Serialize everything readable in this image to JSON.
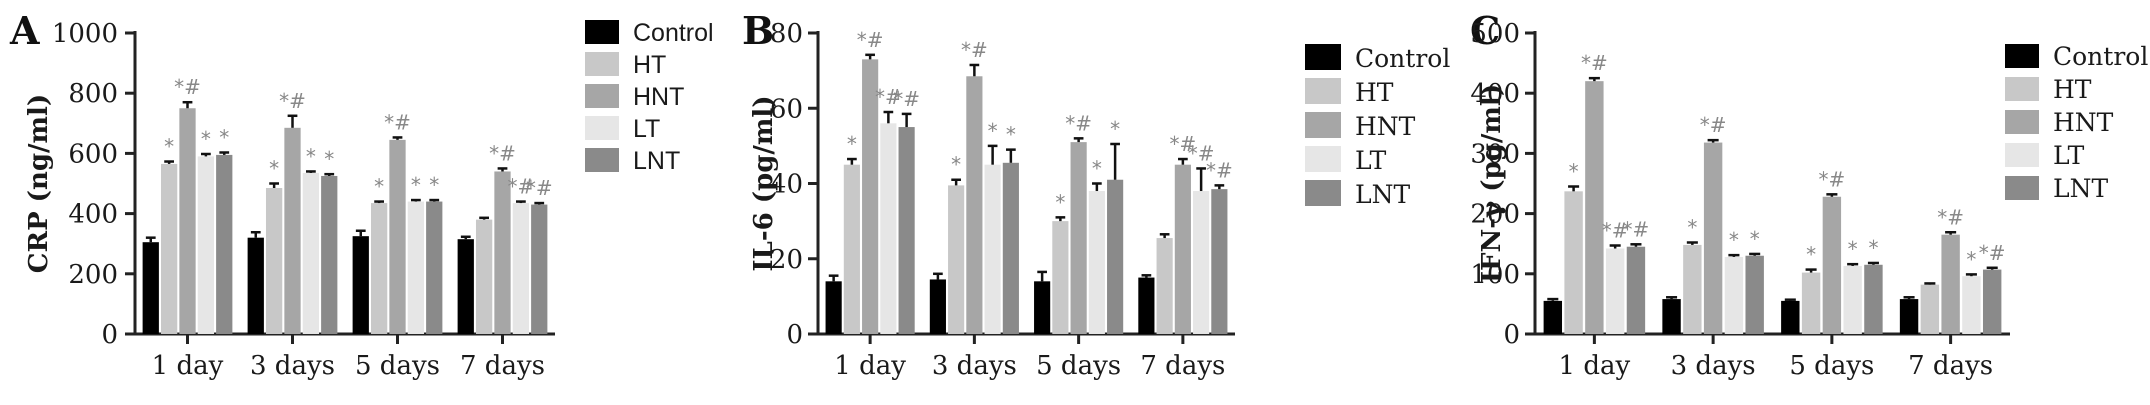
{
  "chart_data": [
    {
      "type": "bar",
      "panel": "A",
      "ylabel": "CRP (ng/ml)",
      "ylim": [
        0,
        1000
      ],
      "yticks": [
        0,
        200,
        400,
        600,
        800,
        1000
      ],
      "categories": [
        "1 day",
        "3 days",
        "5 days",
        "7 days"
      ],
      "legend_position": "top-right",
      "series": [
        {
          "name": "Control",
          "color": "#000000",
          "values": [
            305,
            320,
            325,
            315
          ],
          "errors": [
            15,
            18,
            18,
            8
          ],
          "marks": [
            "",
            "",
            "",
            ""
          ]
        },
        {
          "name": "HT",
          "color": "#c8c8c8",
          "values": [
            565,
            485,
            435,
            380
          ],
          "errors": [
            8,
            15,
            5,
            6
          ],
          "marks": [
            "*",
            "*",
            "*",
            ""
          ]
        },
        {
          "name": "HNT",
          "color": "#a6a6a6",
          "values": [
            750,
            685,
            645,
            540
          ],
          "errors": [
            20,
            40,
            8,
            10
          ],
          "marks": [
            "*#",
            "*#",
            "*#",
            "*#"
          ]
        },
        {
          "name": "LT",
          "color": "#e6e6e6",
          "values": [
            590,
            535,
            440,
            435
          ],
          "errors": [
            8,
            5,
            5,
            5
          ],
          "marks": [
            "*",
            "*",
            "*",
            "*#"
          ]
        },
        {
          "name": "LNT",
          "color": "#8a8a8a",
          "values": [
            595,
            525,
            440,
            430
          ],
          "errors": [
            8,
            6,
            5,
            5
          ],
          "marks": [
            "*",
            "*",
            "*",
            "*#"
          ]
        }
      ]
    },
    {
      "type": "bar",
      "panel": "B",
      "ylabel": "IL-6 (pg/ml)",
      "ylim": [
        0,
        80
      ],
      "yticks": [
        0,
        20,
        40,
        60,
        80
      ],
      "categories": [
        "1 day",
        "3 days",
        "5 days",
        "7 days"
      ],
      "legend_position": "top-right",
      "series": [
        {
          "name": "Control",
          "color": "#000000",
          "values": [
            14,
            14.5,
            14,
            15
          ],
          "errors": [
            1.5,
            1.5,
            2.5,
            0.6
          ],
          "marks": [
            "",
            "",
            "",
            ""
          ]
        },
        {
          "name": "HT",
          "color": "#c8c8c8",
          "values": [
            45,
            39.5,
            30,
            25.5
          ],
          "errors": [
            1.5,
            1.5,
            1.0,
            1.0
          ],
          "marks": [
            "*",
            "*",
            "*",
            ""
          ]
        },
        {
          "name": "HNT",
          "color": "#a6a6a6",
          "values": [
            73,
            68.5,
            51,
            45
          ],
          "errors": [
            1.2,
            3.0,
            1.0,
            1.5
          ],
          "marks": [
            "*#",
            "*#",
            "*#",
            "*#"
          ]
        },
        {
          "name": "LT",
          "color": "#e6e6e6",
          "values": [
            56,
            45,
            38,
            38
          ],
          "errors": [
            3.0,
            5.0,
            2.0,
            6.0
          ],
          "marks": [
            "*#",
            "*",
            "*",
            "*#"
          ]
        },
        {
          "name": "LNT",
          "color": "#8a8a8a",
          "values": [
            55,
            45.5,
            41,
            38.5
          ],
          "errors": [
            3.5,
            3.5,
            9.5,
            1.0
          ],
          "marks": [
            "*#",
            "*",
            "*",
            "*#"
          ]
        }
      ]
    },
    {
      "type": "bar",
      "panel": "C",
      "ylabel": "IFN-γ (pg/ml)",
      "ylim": [
        0,
        500
      ],
      "yticks": [
        0,
        100,
        200,
        300,
        400,
        500
      ],
      "categories": [
        "1 day",
        "3 days",
        "5 days",
        "7 days"
      ],
      "legend_position": "top-right",
      "series": [
        {
          "name": "Control",
          "color": "#000000",
          "values": [
            55,
            58,
            55,
            58
          ],
          "errors": [
            3,
            3,
            2,
            3
          ],
          "marks": [
            "",
            "",
            "",
            ""
          ]
        },
        {
          "name": "HT",
          "color": "#c8c8c8",
          "values": [
            237,
            148,
            102,
            82
          ],
          "errors": [
            8,
            4,
            5,
            2
          ],
          "marks": [
            "*",
            "*",
            "*",
            ""
          ]
        },
        {
          "name": "HNT",
          "color": "#a6a6a6",
          "values": [
            420,
            318,
            228,
            165
          ],
          "errors": [
            5,
            4,
            4,
            4
          ],
          "marks": [
            "*#",
            "*#",
            "*#",
            "*#"
          ]
        },
        {
          "name": "LT",
          "color": "#e6e6e6",
          "values": [
            142,
            128,
            113,
            96
          ],
          "errors": [
            5,
            3,
            3,
            3
          ],
          "marks": [
            "*#",
            "*",
            "*",
            "*"
          ]
        },
        {
          "name": "LNT",
          "color": "#8a8a8a",
          "values": [
            145,
            130,
            115,
            107
          ],
          "errors": [
            4,
            3,
            3,
            3
          ],
          "marks": [
            "*#",
            "*",
            "*",
            "*#"
          ]
        }
      ]
    }
  ]
}
